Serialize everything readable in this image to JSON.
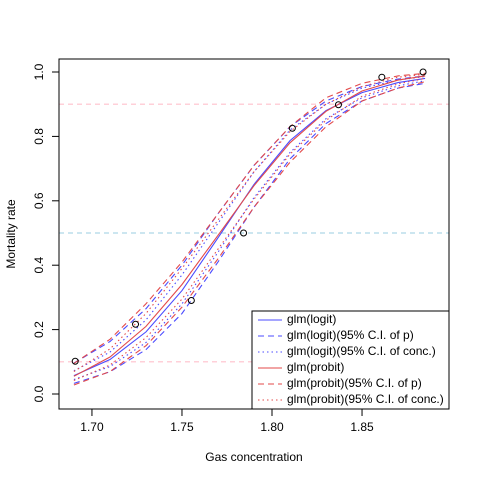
{
  "chart_data": {
    "type": "line",
    "xlabel": "Gas concentration",
    "ylabel": "Mortality rate",
    "xlim": [
      1.6817,
      1.8983
    ],
    "ylim": [
      -0.0466,
      1.0404
    ],
    "xticks": [
      {
        "value": 1.7,
        "label": "1.70"
      },
      1.75,
      {
        "value": 1.8,
        "label": "1.80"
      },
      1.85
    ],
    "yticks": [
      {
        "value": 0,
        "label": "0.0"
      },
      0.2,
      0.4,
      0.6,
      0.8,
      {
        "value": 1,
        "label": "1.0"
      }
    ],
    "hlines": [
      {
        "value": 0.1,
        "color": "#ffc0cb"
      },
      {
        "value": 0.5,
        "color": "#add8e6"
      },
      {
        "value": 0.9,
        "color": "#ffc0cb"
      }
    ],
    "points": {
      "x": [
        1.6907,
        1.7242,
        1.7552,
        1.7842,
        1.8113,
        1.8369,
        1.861,
        1.8839
      ],
      "y": [
        0.1017,
        0.2167,
        0.2903,
        0.5,
        0.8254,
        0.8983,
        0.9839,
        1.0
      ]
    },
    "x": [
      1.69,
      1.71,
      1.73,
      1.75,
      1.77,
      1.79,
      1.81,
      1.83,
      1.85,
      1.87,
      1.885
    ],
    "series": [
      {
        "name": "glm(logit)",
        "color": "#4b4bff",
        "dash": "solid",
        "values": [
          0.057,
          0.107,
          0.193,
          0.321,
          0.485,
          0.651,
          0.787,
          0.88,
          0.936,
          0.967,
          0.98
        ]
      },
      {
        "name": "glm(logit)(95% C.I. of p)",
        "color": "#4b4bff",
        "dash": "dashed",
        "lower": [
          0.033,
          0.069,
          0.138,
          0.25,
          0.41,
          0.58,
          0.73,
          0.84,
          0.91,
          0.95,
          0.965
        ],
        "upper": [
          0.096,
          0.163,
          0.265,
          0.4,
          0.56,
          0.71,
          0.83,
          0.91,
          0.955,
          0.978,
          0.988
        ]
      },
      {
        "name": "glm(logit)(95% C.I. of conc.)",
        "color": "#4b4bff",
        "dash": "dotted",
        "lower": [
          0.045,
          0.085,
          0.16,
          0.28,
          0.44,
          0.61,
          0.75,
          0.855,
          0.92,
          0.957,
          0.973
        ],
        "upper": [
          0.072,
          0.13,
          0.23,
          0.37,
          0.53,
          0.69,
          0.82,
          0.9,
          0.95,
          0.975,
          0.986
        ]
      },
      {
        "name": "glm(probit)",
        "color": "#e34a4a",
        "dash": "solid",
        "values": [
          0.055,
          0.115,
          0.21,
          0.34,
          0.493,
          0.647,
          0.78,
          0.878,
          0.941,
          0.975,
          0.988
        ]
      },
      {
        "name": "glm(probit)(95% C.I. of p)",
        "color": "#e34a4a",
        "dash": "dashed",
        "lower": [
          0.028,
          0.07,
          0.15,
          0.27,
          0.42,
          0.58,
          0.72,
          0.83,
          0.91,
          0.95,
          0.97
        ],
        "upper": [
          0.095,
          0.17,
          0.28,
          0.41,
          0.56,
          0.71,
          0.83,
          0.92,
          0.965,
          0.988,
          0.996
        ]
      },
      {
        "name": "glm(probit)(95% C.I. of conc.)",
        "color": "#e34a4a",
        "dash": "dotted",
        "lower": [
          0.042,
          0.09,
          0.175,
          0.295,
          0.45,
          0.605,
          0.745,
          0.85,
          0.925,
          0.963,
          0.98
        ],
        "upper": [
          0.07,
          0.14,
          0.25,
          0.39,
          0.54,
          0.69,
          0.815,
          0.9,
          0.955,
          0.984,
          0.993
        ]
      }
    ],
    "legend": "bottom-right"
  }
}
